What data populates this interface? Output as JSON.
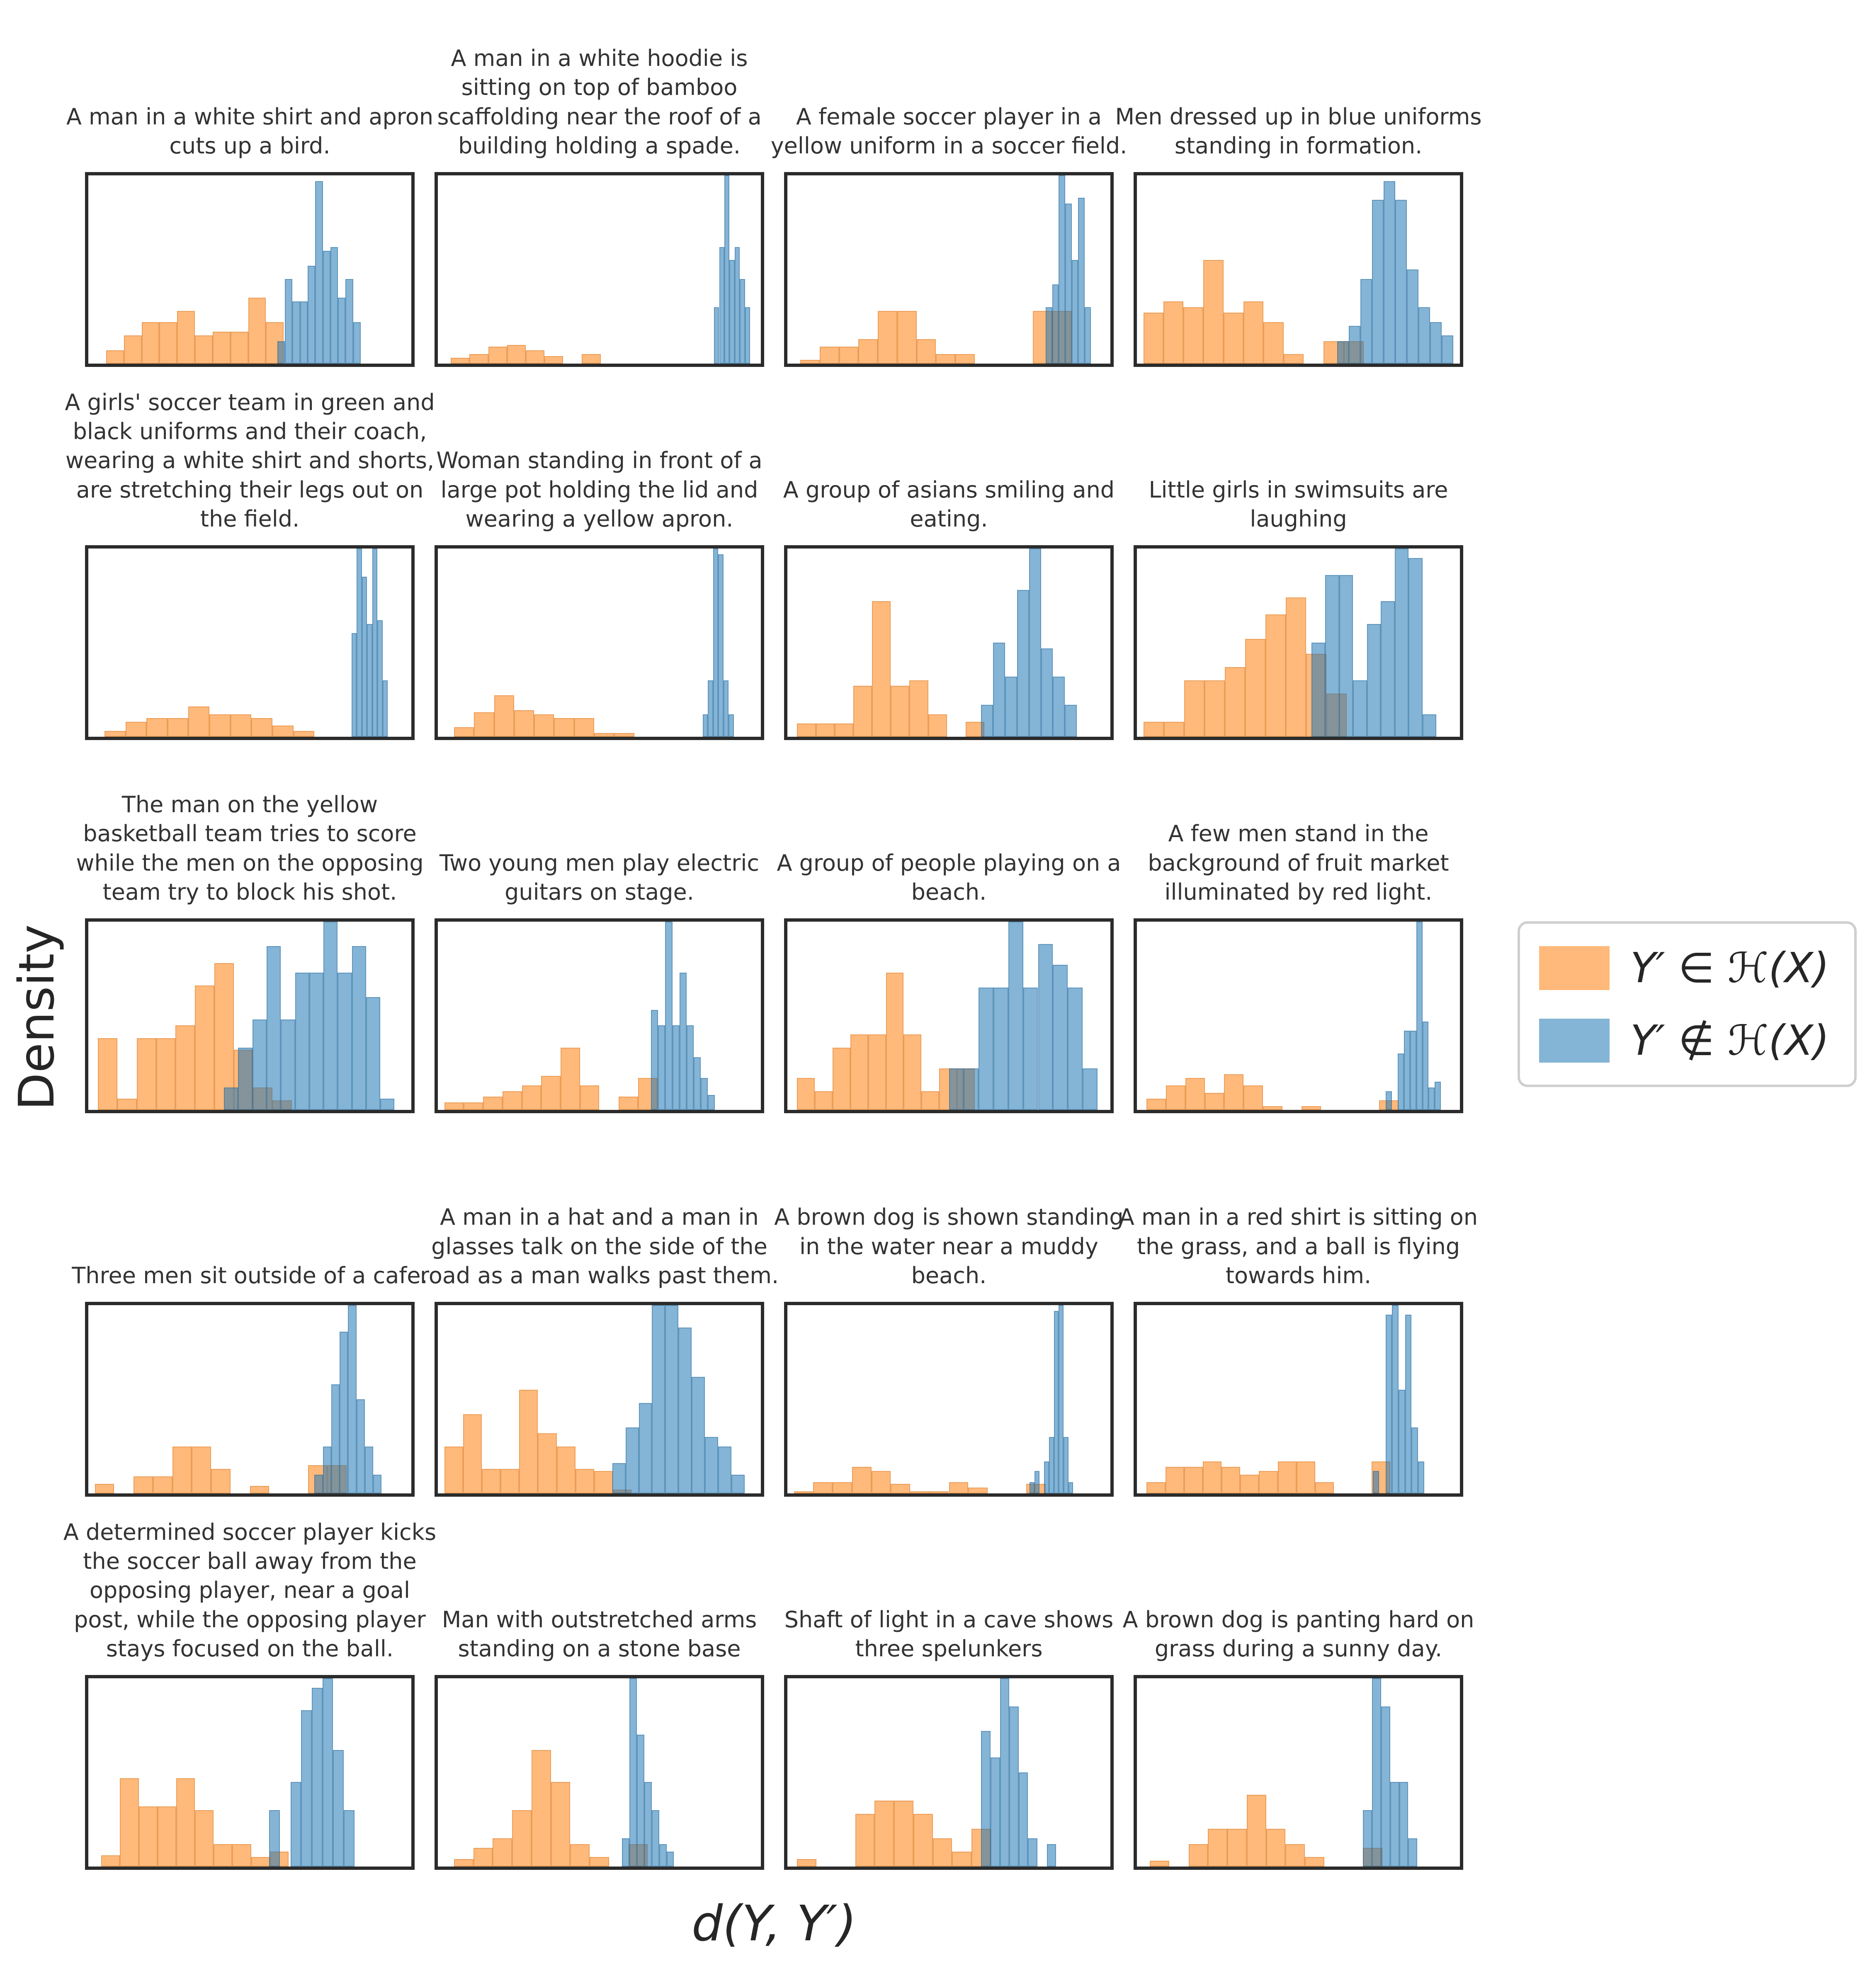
{
  "figure": {
    "ylabel": "Density",
    "xlabel": "d(Y, Y′)",
    "legend": {
      "items": [
        {
          "label": "Y′ ∈ ℋ(X)",
          "color": "#FFB97A"
        },
        {
          "label": "Y′ ∉ ℋ(X)",
          "color": "#84B4D6"
        }
      ]
    }
  },
  "chart_data": {
    "type": "bar",
    "subtype": "histogram-small-multiples",
    "rows": 5,
    "cols": 4,
    "title": "",
    "xlabel": "d(Y, Y′)",
    "ylabel": "Density",
    "legend_position": "right-middle",
    "grid": false,
    "series_colors": {
      "in_H": "rgba(255,127,14,0.55)",
      "not_in_H": "rgba(31,119,180,0.55)"
    },
    "axis_note": "no tick labels shown; heights are relative densities 0-1, x positions are fractions of axis width",
    "panels": [
      {
        "title": "A man in a white shirt and apron cuts up a bird.",
        "in_H": {
          "start": 0.055,
          "bin": 0.055,
          "heights": [
            0.07,
            0.15,
            0.22,
            0.22,
            0.28,
            0.15,
            0.17,
            0.17,
            0.35,
            0.22
          ]
        },
        "not_in_H": {
          "start": 0.585,
          "bin": 0.0235,
          "heights": [
            0.12,
            0.45,
            0.33,
            0.33,
            0.52,
            0.97,
            0.6,
            0.62,
            0.35,
            0.45,
            0.22
          ]
        }
      },
      {
        "title": "A man in a white hoodie is sitting on top of bamboo scaffolding near the roof of a building holding a spade.",
        "in_H": {
          "start": 0.04,
          "bin": 0.058,
          "heights": [
            0.03,
            0.05,
            0.09,
            0.1,
            0.07,
            0.04,
            0,
            0.05
          ]
        },
        "not_in_H": {
          "start": 0.855,
          "bin": 0.016,
          "heights": [
            0.3,
            0.62,
            1.0,
            0.55,
            0.62,
            0.45,
            0.3
          ]
        }
      },
      {
        "title": "A female soccer player in a yellow uniform in a soccer field.",
        "in_H": {
          "start": 0.04,
          "bin": 0.06,
          "heights": [
            0.02,
            0.09,
            0.09,
            0.13,
            0.28,
            0.28,
            0.13,
            0.05,
            0.05,
            0,
            0,
            0,
            0.28,
            0.28
          ]
        },
        "not_in_H": {
          "start": 0.8,
          "bin": 0.02,
          "heights": [
            0.3,
            0.42,
            1.0,
            0.85,
            0.55,
            0.88,
            0.3
          ]
        }
      },
      {
        "title": "Men dressed up in blue uniforms standing in formation.",
        "in_H": {
          "start": 0.02,
          "bin": 0.062,
          "heights": [
            0.27,
            0.33,
            0.3,
            0.55,
            0.27,
            0.33,
            0.22,
            0.05,
            0,
            0.12,
            0.12
          ]
        },
        "not_in_H": {
          "start": 0.62,
          "bin": 0.036,
          "heights": [
            0.12,
            0.2,
            0.45,
            0.87,
            0.97,
            0.87,
            0.5,
            0.3,
            0.22,
            0.15
          ]
        }
      },
      {
        "title": "A girls' soccer team in green and black uniforms and their coach, wearing a white shirt and shorts, are stretching their legs out on the field.",
        "in_H": {
          "start": 0.05,
          "bin": 0.065,
          "heights": [
            0.03,
            0.08,
            0.1,
            0.1,
            0.16,
            0.12,
            0.12,
            0.1,
            0.06,
            0.03
          ]
        },
        "not_in_H": {
          "start": 0.815,
          "bin": 0.016,
          "heights": [
            0.55,
            1.0,
            0.85,
            0.6,
            1.0,
            0.62,
            0.3
          ]
        }
      },
      {
        "title": "Woman standing in front of a large pot holding the lid and wearing a yellow apron.",
        "in_H": {
          "start": 0.05,
          "bin": 0.062,
          "heights": [
            0.05,
            0.13,
            0.22,
            0.14,
            0.12,
            0.1,
            0.1,
            0.02,
            0.02
          ]
        },
        "not_in_H": {
          "start": 0.82,
          "bin": 0.016,
          "heights": [
            0.12,
            0.3,
            1.0,
            0.97,
            0.3,
            0.12
          ]
        }
      },
      {
        "title": "A group of asians smiling and eating.",
        "in_H": {
          "start": 0.03,
          "bin": 0.058,
          "heights": [
            0.07,
            0.07,
            0.07,
            0.27,
            0.72,
            0.27,
            0.3,
            0.12,
            0,
            0.08
          ]
        },
        "not_in_H": {
          "start": 0.6,
          "bin": 0.037,
          "heights": [
            0.17,
            0.5,
            0.32,
            0.78,
            1.0,
            0.47,
            0.32,
            0.17
          ]
        }
      },
      {
        "title": "Little girls in swimsuits are laughing",
        "in_H": {
          "start": 0.02,
          "bin": 0.063,
          "heights": [
            0.08,
            0.08,
            0.3,
            0.3,
            0.37,
            0.52,
            0.65,
            0.74,
            0.44,
            0.23
          ]
        },
        "not_in_H": {
          "start": 0.54,
          "bin": 0.043,
          "heights": [
            0.5,
            0.86,
            0.86,
            0.3,
            0.6,
            0.72,
            1.0,
            0.95,
            0.12
          ]
        }
      },
      {
        "title": "The man on the yellow basketball team tries to score while the men on the opposing team try to block his shot.",
        "in_H": {
          "start": 0.03,
          "bin": 0.06,
          "heights": [
            0.38,
            0.06,
            0.38,
            0.38,
            0.45,
            0.66,
            0.78,
            0.32,
            0.12,
            0.05
          ]
        },
        "not_in_H": {
          "start": 0.42,
          "bin": 0.044,
          "heights": [
            0.12,
            0.33,
            0.48,
            0.87,
            0.48,
            0.73,
            0.73,
            1.0,
            0.73,
            0.87,
            0.6,
            0.06
          ]
        }
      },
      {
        "title": "Two young men play electric guitars on stage.",
        "in_H": {
          "start": 0.02,
          "bin": 0.06,
          "heights": [
            0.04,
            0.04,
            0.07,
            0.1,
            0.13,
            0.18,
            0.33,
            0.13,
            0,
            0.07,
            0.17
          ]
        },
        "not_in_H": {
          "start": 0.66,
          "bin": 0.022,
          "heights": [
            0.53,
            0.45,
            1.0,
            0.45,
            0.73,
            0.45,
            0.28,
            0.17,
            0.08
          ]
        }
      },
      {
        "title": "A group of people playing on a beach.",
        "in_H": {
          "start": 0.03,
          "bin": 0.055,
          "heights": [
            0.17,
            0.1,
            0.33,
            0.4,
            0.4,
            0.73,
            0.4,
            0.1,
            0.22,
            0.22
          ]
        },
        "not_in_H": {
          "start": 0.5,
          "bin": 0.046,
          "heights": [
            0.22,
            0.22,
            0.65,
            0.65,
            1.0,
            0.65,
            0.88,
            0.77,
            0.65,
            0.22
          ]
        }
      },
      {
        "title": "A few men stand in the background of fruit market illuminated by red light.",
        "in_H": {
          "start": 0.03,
          "bin": 0.06,
          "heights": [
            0.06,
            0.13,
            0.17,
            0.09,
            0.19,
            0.13,
            0.02,
            0,
            0.02,
            0,
            0,
            0,
            0.05
          ]
        },
        "not_in_H": {
          "start": 0.77,
          "bin": 0.019,
          "heights": [
            0.1,
            0,
            0.3,
            0.42,
            0.42,
            1.0,
            0.47,
            0.12,
            0.15
          ]
        }
      },
      {
        "title": "Three men sit outside of a cafe.",
        "in_H": {
          "start": 0.02,
          "bin": 0.06,
          "heights": [
            0.05,
            0,
            0.09,
            0.09,
            0.25,
            0.25,
            0.13,
            0,
            0.04,
            0,
            0,
            0.15,
            0.15
          ]
        },
        "not_in_H": {
          "start": 0.7,
          "bin": 0.026,
          "heights": [
            0.1,
            0.25,
            0.58,
            0.86,
            1.0,
            0.5,
            0.25,
            0.1
          ]
        }
      },
      {
        "title": "A man in a hat and a man in glasses talk on the side of the road as a man walks past them.",
        "in_H": {
          "start": 0.02,
          "bin": 0.058,
          "heights": [
            0.25,
            0.42,
            0.13,
            0.13,
            0.55,
            0.32,
            0.25,
            0.13,
            0.12,
            0.02
          ]
        },
        "not_in_H": {
          "start": 0.54,
          "bin": 0.041,
          "heights": [
            0.16,
            0.35,
            0.48,
            1.0,
            1.0,
            0.88,
            0.62,
            0.3,
            0.25,
            0.1
          ]
        }
      },
      {
        "title": "A brown dog is shown standing in the water near a muddy beach.",
        "in_H": {
          "start": 0.02,
          "bin": 0.06,
          "heights": [
            0.01,
            0.06,
            0.06,
            0.14,
            0.12,
            0.05,
            0.01,
            0.01,
            0.06,
            0.03,
            0,
            0,
            0.05
          ]
        },
        "not_in_H": {
          "start": 0.75,
          "bin": 0.015,
          "heights": [
            0.06,
            0.12,
            0,
            0.17,
            0.3,
            0.97,
            1.0,
            0.3,
            0.06
          ]
        }
      },
      {
        "title": "A man in a red shirt is sitting on the grass, and a ball is flying towards him.",
        "in_H": {
          "start": 0.03,
          "bin": 0.058,
          "heights": [
            0.06,
            0.14,
            0.14,
            0.17,
            0.14,
            0.1,
            0.12,
            0.17,
            0.17,
            0.06,
            0,
            0,
            0.17
          ]
        },
        "not_in_H": {
          "start": 0.73,
          "bin": 0.02,
          "heights": [
            0.12,
            0,
            0.95,
            1.0,
            0.55,
            0.95,
            0.35,
            0.17
          ]
        }
      },
      {
        "title": "A determined soccer player kicks the soccer ball away from the opposing player, near a goal post, while the opposing player stays focused on the ball.",
        "in_H": {
          "start": 0.04,
          "bin": 0.058,
          "heights": [
            0.06,
            0.47,
            0.32,
            0.32,
            0.47,
            0.3,
            0.12,
            0.12,
            0.05,
            0.08
          ]
        },
        "not_in_H": {
          "start": 0.56,
          "bin": 0.033,
          "heights": [
            0.3,
            0,
            0.45,
            0.83,
            0.95,
            1.0,
            0.62,
            0.3
          ]
        }
      },
      {
        "title": "Man with outstretched arms standing on a stone base",
        "in_H": {
          "start": 0.05,
          "bin": 0.06,
          "heights": [
            0.04,
            0.1,
            0.15,
            0.3,
            0.62,
            0.45,
            0.12,
            0.05,
            0,
            0.12
          ]
        },
        "not_in_H": {
          "start": 0.57,
          "bin": 0.023,
          "heights": [
            0.15,
            1.0,
            0.7,
            0.45,
            0.3,
            0.12,
            0.08
          ]
        }
      },
      {
        "title": "Shaft of light in a cave shows three spelunkers",
        "in_H": {
          "start": 0.03,
          "bin": 0.06,
          "heights": [
            0.04,
            0,
            0,
            0.28,
            0.35,
            0.35,
            0.28,
            0.15,
            0.08,
            0.2
          ]
        },
        "not_in_H": {
          "start": 0.6,
          "bin": 0.029,
          "heights": [
            0.72,
            0.58,
            1.0,
            0.85,
            0.5,
            0.15,
            0,
            0.12
          ]
        }
      },
      {
        "title": "A brown dog is panting hard on grass during a sunny day.",
        "in_H": {
          "start": 0.04,
          "bin": 0.06,
          "heights": [
            0.03,
            0,
            0.12,
            0.2,
            0.2,
            0.38,
            0.2,
            0.12,
            0.05,
            0,
            0,
            0.1
          ]
        },
        "not_in_H": {
          "start": 0.7,
          "bin": 0.028,
          "heights": [
            0.3,
            1.0,
            0.85,
            0.45,
            0.45,
            0.15
          ]
        }
      }
    ]
  }
}
